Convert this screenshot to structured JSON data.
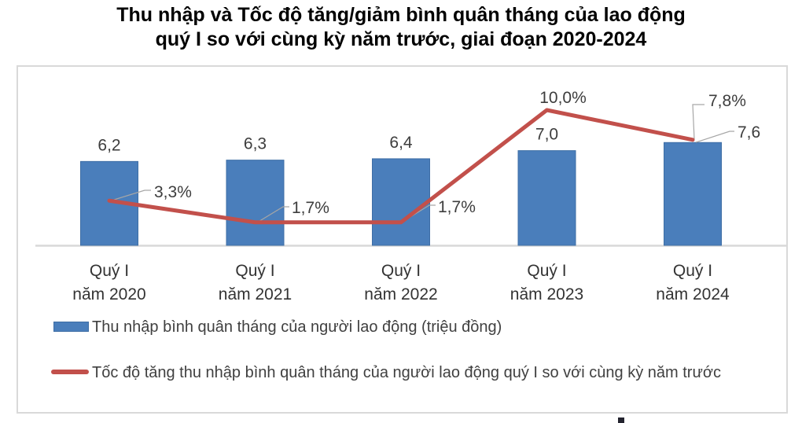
{
  "title": {
    "line1": "Thu nhập và Tốc độ tăng/giảm bình quân tháng của lao động",
    "line2": "quý I so với cùng kỳ năm trước, giai đoạn 2020-2024"
  },
  "chart_data": {
    "type": "bar+line",
    "title": "Thu nhập và Tốc độ tăng/giảm bình quân tháng của lao động quý I so với cùng kỳ năm trước, giai đoạn 2020-2024",
    "categories": [
      {
        "quarter": "Quý I",
        "year": "năm 2020"
      },
      {
        "quarter": "Quý I",
        "year": "năm 2021"
      },
      {
        "quarter": "Quý I",
        "year": "năm 2022"
      },
      {
        "quarter": "Quý I",
        "year": "năm 2023"
      },
      {
        "quarter": "Quý I",
        "year": "năm 2024"
      }
    ],
    "series": [
      {
        "name": "Thu nhập bình quân tháng của người lao động (triệu đồng)",
        "type": "bar",
        "values": [
          6.2,
          6.3,
          6.4,
          7.0,
          7.6
        ],
        "labels": [
          "6,2",
          "6,3",
          "6,4",
          "7,0",
          "7,6"
        ],
        "color": "#4A7EBB",
        "border_color": "#3E6EA5"
      },
      {
        "name": "Tốc độ tăng thu nhập bình quân tháng của người lao động quý I so với cùng kỳ năm trước",
        "type": "line",
        "values": [
          3.3,
          1.7,
          1.7,
          10.0,
          7.8
        ],
        "labels": [
          "3,3%",
          "1,7%",
          "1,7%",
          "10,0%",
          "7,8%"
        ],
        "color": "#C2504B"
      }
    ],
    "ylim": [
      0,
      13
    ],
    "grid": false,
    "axis_color": "#D9D9D9",
    "callout_color": "#A6A6A6",
    "legend_position": "bottom-left"
  },
  "legend": {
    "items": [
      {
        "label": "Thu nhập bình quân tháng của người lao động (triệu đồng)",
        "marker": "bar",
        "color": "#4A7EBB"
      },
      {
        "label": "Tốc độ tăng thu nhập bình quân tháng của người lao động quý I so với cùng kỳ năm trước",
        "marker": "line",
        "color": "#C2504B"
      }
    ]
  }
}
